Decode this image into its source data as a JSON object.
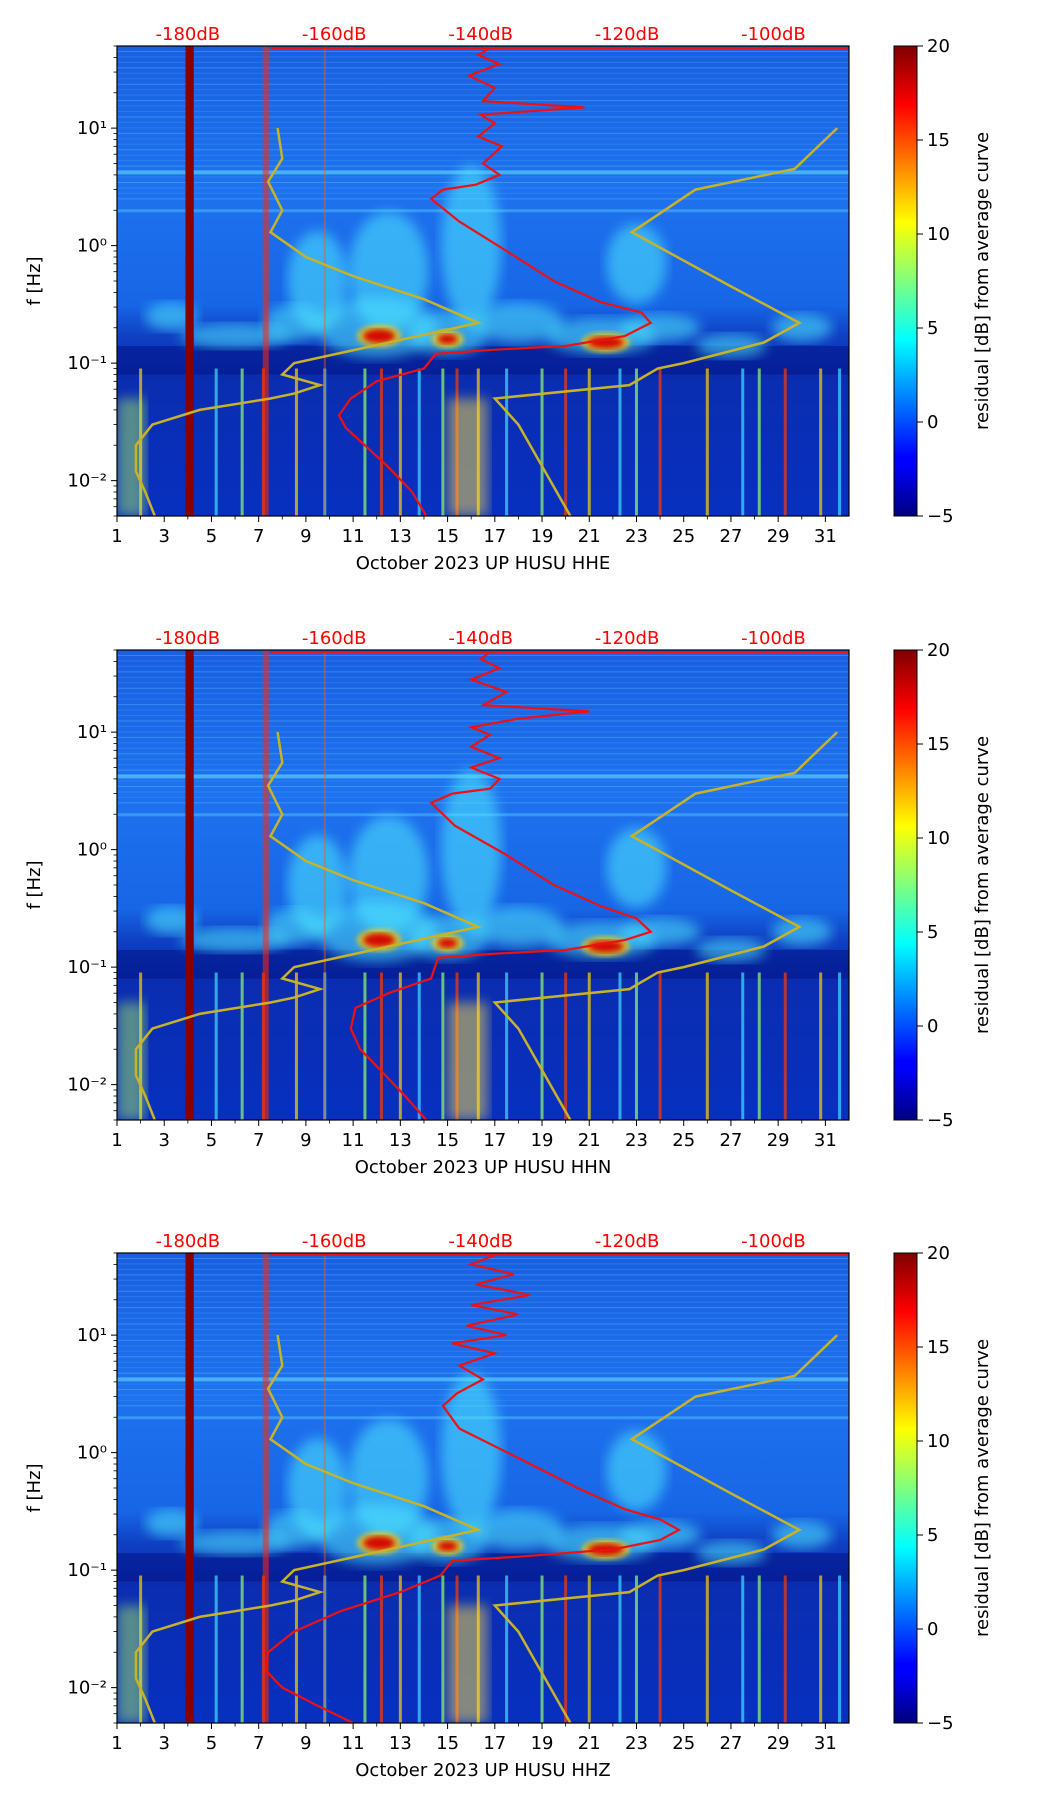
{
  "chart_data": [
    {
      "type": "heatmap",
      "title": "",
      "xlabel": "October 2023 UP HUSU  HHE",
      "ylabel": "f [Hz]",
      "channel": "HHE",
      "x_range": [
        1,
        32
      ],
      "x_ticks": [
        1,
        3,
        5,
        7,
        9,
        11,
        13,
        15,
        17,
        19,
        21,
        23,
        25,
        27,
        29,
        31
      ],
      "y_scale": "log",
      "y_range": [
        0.005,
        50
      ],
      "y_ticks": [
        {
          "value": 0.01,
          "label": "10⁻²"
        },
        {
          "value": 0.1,
          "label": "10⁻¹"
        },
        {
          "value": 1,
          "label": "10⁰"
        },
        {
          "value": 10,
          "label": "10¹"
        }
      ],
      "db_axis": {
        "ticks": [
          -180,
          -160,
          -140,
          -120,
          -100
        ],
        "labels": [
          "-180dB",
          "-160dB",
          "-140dB",
          "-120dB",
          "-100dB"
        ],
        "x_day_at_label": [
          4,
          10.2,
          16.4,
          22.6,
          28.8
        ]
      },
      "colorbar": {
        "label": "residual [dB] from average curve",
        "range": [
          -5,
          20
        ],
        "ticks": [
          -5,
          0,
          5,
          10,
          15,
          20
        ],
        "tick_labels": [
          "−5",
          "0",
          "5",
          "10",
          "15",
          "20"
        ],
        "colormap": "jet"
      },
      "red_curve": {
        "name": "average PSD",
        "points": [
          [
            14.1,
            0.005
          ],
          [
            13.5,
            0.008
          ],
          [
            12.5,
            0.013
          ],
          [
            11.5,
            0.02
          ],
          [
            10.7,
            0.028
          ],
          [
            10.4,
            0.036
          ],
          [
            10.9,
            0.05
          ],
          [
            12,
            0.07
          ],
          [
            14,
            0.09
          ],
          [
            14.5,
            0.12
          ],
          [
            17,
            0.13
          ],
          [
            20,
            0.14
          ],
          [
            22.5,
            0.17
          ],
          [
            23.6,
            0.22
          ],
          [
            23.2,
            0.27
          ],
          [
            21.5,
            0.33
          ],
          [
            19.5,
            0.5
          ],
          [
            17.5,
            0.9
          ],
          [
            15.5,
            1.6
          ],
          [
            14.3,
            2.5
          ],
          [
            14.8,
            3.0
          ],
          [
            16.2,
            3.3
          ],
          [
            17.2,
            4.0
          ],
          [
            16.5,
            5.0
          ],
          [
            17.3,
            7.0
          ],
          [
            16.3,
            8.5
          ],
          [
            17.0,
            11
          ],
          [
            16.4,
            13
          ],
          [
            20.8,
            15
          ],
          [
            16.5,
            17
          ],
          [
            17.0,
            22
          ],
          [
            15.9,
            28
          ],
          [
            17.2,
            35
          ],
          [
            16.3,
            42
          ],
          [
            16.8,
            48
          ]
        ]
      },
      "yellow_low": {
        "name": "low noise model",
        "points": [
          [
            2.6,
            0.005
          ],
          [
            2.2,
            0.008
          ],
          [
            1.8,
            0.012
          ],
          [
            1.8,
            0.02
          ],
          [
            2.5,
            0.03
          ],
          [
            4.5,
            0.04
          ],
          [
            7.5,
            0.05
          ],
          [
            8.5,
            0.055
          ],
          [
            9.6,
            0.065
          ],
          [
            8.0,
            0.08
          ],
          [
            8.5,
            0.1
          ],
          [
            16.3,
            0.22
          ],
          [
            14,
            0.35
          ],
          [
            11,
            0.55
          ],
          [
            9,
            0.8
          ],
          [
            7.5,
            1.3
          ],
          [
            8,
            2.0
          ],
          [
            7.4,
            3.5
          ],
          [
            8.0,
            5.5
          ],
          [
            7.8,
            10.0
          ]
        ]
      },
      "yellow_high": {
        "name": "high noise model",
        "points": [
          [
            20.2,
            0.005
          ],
          [
            18,
            0.03
          ],
          [
            17,
            0.05
          ],
          [
            22.7,
            0.065
          ],
          [
            23.9,
            0.09
          ],
          [
            25,
            0.1
          ],
          [
            28.4,
            0.15
          ],
          [
            29.9,
            0.22
          ],
          [
            27,
            0.45
          ],
          [
            22.8,
            1.3
          ],
          [
            25.5,
            3.0
          ],
          [
            29.7,
            4.5
          ],
          [
            31.5,
            10.0
          ]
        ]
      }
    },
    {
      "type": "heatmap",
      "title": "",
      "xlabel": "October 2023 UP HUSU  HHN",
      "ylabel": "f [Hz]",
      "channel": "HHN",
      "x_range": [
        1,
        32
      ],
      "x_ticks": [
        1,
        3,
        5,
        7,
        9,
        11,
        13,
        15,
        17,
        19,
        21,
        23,
        25,
        27,
        29,
        31
      ],
      "y_scale": "log",
      "y_range": [
        0.005,
        50
      ],
      "y_ticks": [
        {
          "value": 0.01,
          "label": "10⁻²"
        },
        {
          "value": 0.1,
          "label": "10⁻¹"
        },
        {
          "value": 1,
          "label": "10⁰"
        },
        {
          "value": 10,
          "label": "10¹"
        }
      ],
      "db_axis": {
        "ticks": [
          -180,
          -160,
          -140,
          -120,
          -100
        ],
        "labels": [
          "-180dB",
          "-160dB",
          "-140dB",
          "-120dB",
          "-100dB"
        ],
        "x_day_at_label": [
          4,
          10.2,
          16.4,
          22.6,
          28.8
        ]
      },
      "colorbar": {
        "label": "residual [dB] from average curve",
        "range": [
          -5,
          20
        ],
        "ticks": [
          -5,
          0,
          5,
          10,
          15,
          20
        ],
        "tick_labels": [
          "−5",
          "0",
          "5",
          "10",
          "15",
          "20"
        ],
        "colormap": "jet"
      },
      "red_curve": {
        "name": "average PSD",
        "points": [
          [
            14.1,
            0.005
          ],
          [
            13.2,
            0.008
          ],
          [
            12.2,
            0.013
          ],
          [
            11.3,
            0.02
          ],
          [
            10.9,
            0.03
          ],
          [
            11.1,
            0.045
          ],
          [
            12.5,
            0.06
          ],
          [
            14.3,
            0.08
          ],
          [
            14.6,
            0.12
          ],
          [
            17,
            0.13
          ],
          [
            20,
            0.14
          ],
          [
            22.5,
            0.17
          ],
          [
            23.6,
            0.2
          ],
          [
            23.0,
            0.26
          ],
          [
            21.5,
            0.33
          ],
          [
            19.5,
            0.5
          ],
          [
            17.5,
            0.9
          ],
          [
            15.3,
            1.6
          ],
          [
            14.3,
            2.5
          ],
          [
            15.2,
            3.0
          ],
          [
            16.8,
            3.3
          ],
          [
            17.2,
            4.0
          ],
          [
            16.0,
            5.0
          ],
          [
            17.2,
            6.0
          ],
          [
            16.0,
            7.5
          ],
          [
            16.8,
            9.5
          ],
          [
            16.0,
            11
          ],
          [
            18.0,
            13
          ],
          [
            21.0,
            15
          ],
          [
            16.5,
            17
          ],
          [
            17.5,
            22
          ],
          [
            16.0,
            28
          ],
          [
            17.2,
            35
          ],
          [
            16.4,
            42
          ],
          [
            16.8,
            48
          ]
        ]
      },
      "yellow_low": {
        "name": "low noise model",
        "points": [
          [
            2.6,
            0.005
          ],
          [
            2.2,
            0.008
          ],
          [
            1.8,
            0.012
          ],
          [
            1.8,
            0.02
          ],
          [
            2.5,
            0.03
          ],
          [
            4.5,
            0.04
          ],
          [
            7.5,
            0.05
          ],
          [
            8.5,
            0.055
          ],
          [
            9.6,
            0.065
          ],
          [
            8.0,
            0.08
          ],
          [
            8.5,
            0.1
          ],
          [
            16.3,
            0.22
          ],
          [
            14,
            0.35
          ],
          [
            11,
            0.55
          ],
          [
            9,
            0.8
          ],
          [
            7.5,
            1.3
          ],
          [
            8,
            2.0
          ],
          [
            7.4,
            3.5
          ],
          [
            8.0,
            5.5
          ],
          [
            7.8,
            10.0
          ]
        ]
      },
      "yellow_high": {
        "name": "high noise model",
        "points": [
          [
            20.2,
            0.005
          ],
          [
            18,
            0.03
          ],
          [
            17,
            0.05
          ],
          [
            22.7,
            0.065
          ],
          [
            23.9,
            0.09
          ],
          [
            25,
            0.1
          ],
          [
            28.4,
            0.15
          ],
          [
            29.9,
            0.22
          ],
          [
            27,
            0.45
          ],
          [
            22.8,
            1.3
          ],
          [
            25.5,
            3.0
          ],
          [
            29.7,
            4.5
          ],
          [
            31.5,
            10.0
          ]
        ]
      }
    },
    {
      "type": "heatmap",
      "title": "",
      "xlabel": "October 2023 UP HUSU  HHZ",
      "ylabel": "f [Hz]",
      "channel": "HHZ",
      "x_range": [
        1,
        32
      ],
      "x_ticks": [
        1,
        3,
        5,
        7,
        9,
        11,
        13,
        15,
        17,
        19,
        21,
        23,
        25,
        27,
        29,
        31
      ],
      "y_scale": "log",
      "y_range": [
        0.005,
        50
      ],
      "y_ticks": [
        {
          "value": 0.01,
          "label": "10⁻²"
        },
        {
          "value": 0.1,
          "label": "10⁻¹"
        },
        {
          "value": 1,
          "label": "10⁰"
        },
        {
          "value": 10,
          "label": "10¹"
        }
      ],
      "db_axis": {
        "ticks": [
          -180,
          -160,
          -140,
          -120,
          -100
        ],
        "labels": [
          "-180dB",
          "-160dB",
          "-140dB",
          "-120dB",
          "-100dB"
        ],
        "x_day_at_label": [
          4,
          10.2,
          16.4,
          22.6,
          28.8
        ]
      },
      "colorbar": {
        "label": "residual [dB] from average curve",
        "range": [
          -5,
          20
        ],
        "ticks": [
          -5,
          0,
          5,
          10,
          15,
          20
        ],
        "tick_labels": [
          "−5",
          "0",
          "5",
          "10",
          "15",
          "20"
        ],
        "colormap": "jet"
      },
      "red_curve": {
        "name": "average PSD",
        "points": [
          [
            11.0,
            0.005
          ],
          [
            9.5,
            0.007
          ],
          [
            8.0,
            0.01
          ],
          [
            7.3,
            0.014
          ],
          [
            7.4,
            0.02
          ],
          [
            8.5,
            0.03
          ],
          [
            10.5,
            0.045
          ],
          [
            13,
            0.065
          ],
          [
            14.7,
            0.09
          ],
          [
            15.2,
            0.12
          ],
          [
            18,
            0.13
          ],
          [
            22,
            0.15
          ],
          [
            24,
            0.18
          ],
          [
            24.8,
            0.22
          ],
          [
            24.0,
            0.27
          ],
          [
            22.5,
            0.33
          ],
          [
            20.5,
            0.5
          ],
          [
            18,
            0.9
          ],
          [
            15.5,
            1.6
          ],
          [
            14.8,
            2.5
          ],
          [
            15.4,
            3.2
          ],
          [
            16.5,
            4.2
          ],
          [
            15.5,
            5.5
          ],
          [
            17.0,
            7.0
          ],
          [
            15.2,
            8.5
          ],
          [
            17.5,
            10
          ],
          [
            15.8,
            12
          ],
          [
            18.0,
            15
          ],
          [
            16.0,
            18
          ],
          [
            18.5,
            22
          ],
          [
            16.2,
            27
          ],
          [
            17.8,
            33
          ],
          [
            16.0,
            40
          ],
          [
            17.0,
            48
          ]
        ]
      },
      "yellow_low": {
        "name": "low noise model",
        "points": [
          [
            2.6,
            0.005
          ],
          [
            2.2,
            0.008
          ],
          [
            1.8,
            0.012
          ],
          [
            1.8,
            0.02
          ],
          [
            2.5,
            0.03
          ],
          [
            4.5,
            0.04
          ],
          [
            7.5,
            0.05
          ],
          [
            8.5,
            0.055
          ],
          [
            9.6,
            0.065
          ],
          [
            8.0,
            0.08
          ],
          [
            8.5,
            0.1
          ],
          [
            16.3,
            0.22
          ],
          [
            14,
            0.35
          ],
          [
            11,
            0.55
          ],
          [
            9,
            0.8
          ],
          [
            7.5,
            1.3
          ],
          [
            8,
            2.0
          ],
          [
            7.4,
            3.5
          ],
          [
            8.0,
            5.5
          ],
          [
            7.8,
            10.0
          ]
        ]
      },
      "yellow_high": {
        "name": "high noise model",
        "points": [
          [
            20.2,
            0.005
          ],
          [
            18,
            0.03
          ],
          [
            17,
            0.05
          ],
          [
            22.7,
            0.065
          ],
          [
            23.9,
            0.09
          ],
          [
            25,
            0.1
          ],
          [
            28.4,
            0.15
          ],
          [
            29.9,
            0.22
          ],
          [
            27,
            0.45
          ],
          [
            22.8,
            1.3
          ],
          [
            25.5,
            3.0
          ],
          [
            29.7,
            4.5
          ],
          [
            31.5,
            10.0
          ]
        ]
      }
    }
  ]
}
